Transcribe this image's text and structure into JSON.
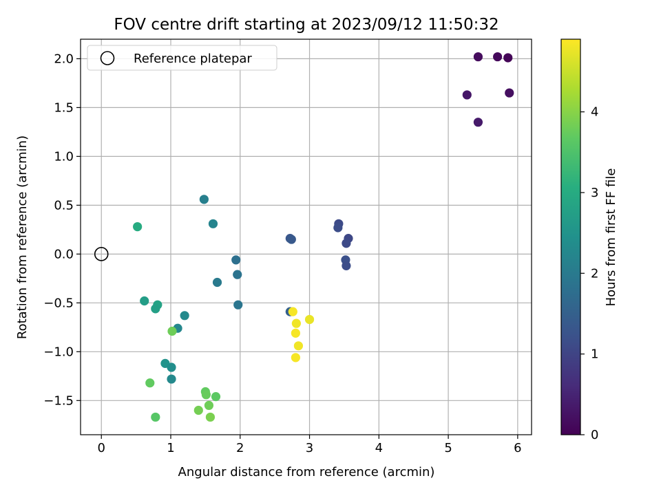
{
  "chart_data": {
    "type": "scatter",
    "title": "FOV centre drift starting at 2023/09/12 11:50:32",
    "xlabel": "Angular distance from reference (arcmin)",
    "ylabel": "Rotation from reference (arcmin)",
    "xlim": [
      -0.3,
      6.2
    ],
    "ylim": [
      -1.85,
      2.2
    ],
    "xticks": [
      0,
      1,
      2,
      3,
      4,
      5,
      6
    ],
    "yticks": [
      -1.5,
      -1.0,
      -0.5,
      0.0,
      0.5,
      1.0,
      1.5,
      2.0
    ],
    "xtick_labels": [
      "0",
      "1",
      "2",
      "3",
      "4",
      "5",
      "6"
    ],
    "ytick_labels": [
      "−1.5",
      "−1.0",
      "−0.5",
      "0.0",
      "0.5",
      "1.0",
      "1.5",
      "2.0"
    ],
    "grid": true,
    "colormap": "viridis",
    "colorbar": {
      "label": "Hours from first FF file",
      "range": [
        0,
        4.9
      ],
      "ticks": [
        0,
        1,
        2,
        3,
        4
      ],
      "tick_labels": [
        "0",
        "1",
        "2",
        "3",
        "4"
      ]
    },
    "legend": {
      "placement": "top-left",
      "entries": [
        {
          "label": "Reference platepar",
          "marker": "open-circle"
        }
      ]
    },
    "reference_point": {
      "x": 0,
      "y": 0
    },
    "points": [
      {
        "x": 5.43,
        "y": 2.02,
        "c": 0.15
      },
      {
        "x": 5.71,
        "y": 2.02,
        "c": 0.1
      },
      {
        "x": 5.86,
        "y": 2.01,
        "c": 0.05
      },
      {
        "x": 5.27,
        "y": 1.63,
        "c": 0.3
      },
      {
        "x": 5.88,
        "y": 1.65,
        "c": 0.2
      },
      {
        "x": 5.43,
        "y": 1.35,
        "c": 0.35
      },
      {
        "x": 3.42,
        "y": 0.31,
        "c": 1.1
      },
      {
        "x": 3.41,
        "y": 0.27,
        "c": 1.15
      },
      {
        "x": 3.56,
        "y": 0.16,
        "c": 1.05
      },
      {
        "x": 3.53,
        "y": 0.11,
        "c": 1.1
      },
      {
        "x": 3.52,
        "y": -0.06,
        "c": 1.2
      },
      {
        "x": 3.53,
        "y": -0.12,
        "c": 1.15
      },
      {
        "x": 2.72,
        "y": 0.16,
        "c": 1.3
      },
      {
        "x": 2.74,
        "y": 0.15,
        "c": 1.35
      },
      {
        "x": 2.72,
        "y": -0.59,
        "c": 1.5
      },
      {
        "x": 1.48,
        "y": 0.56,
        "c": 2.1
      },
      {
        "x": 1.61,
        "y": 0.31,
        "c": 2.2
      },
      {
        "x": 1.94,
        "y": -0.06,
        "c": 1.8
      },
      {
        "x": 1.96,
        "y": -0.21,
        "c": 1.85
      },
      {
        "x": 1.67,
        "y": -0.29,
        "c": 2.0
      },
      {
        "x": 1.97,
        "y": -0.52,
        "c": 1.9
      },
      {
        "x": 1.2,
        "y": -0.63,
        "c": 2.3
      },
      {
        "x": 1.1,
        "y": -0.76,
        "c": 2.25
      },
      {
        "x": 0.52,
        "y": 0.28,
        "c": 3.0
      },
      {
        "x": 0.62,
        "y": -0.48,
        "c": 2.7
      },
      {
        "x": 0.81,
        "y": -0.52,
        "c": 2.8
      },
      {
        "x": 0.78,
        "y": -0.56,
        "c": 2.75
      },
      {
        "x": 0.92,
        "y": -1.12,
        "c": 2.5
      },
      {
        "x": 1.01,
        "y": -1.16,
        "c": 2.4
      },
      {
        "x": 1.01,
        "y": -1.28,
        "c": 2.3
      },
      {
        "x": 1.02,
        "y": -0.79,
        "c": 3.8
      },
      {
        "x": 0.7,
        "y": -1.32,
        "c": 3.7
      },
      {
        "x": 0.78,
        "y": -1.67,
        "c": 3.6
      },
      {
        "x": 1.5,
        "y": -1.41,
        "c": 3.7
      },
      {
        "x": 1.51,
        "y": -1.44,
        "c": 3.75
      },
      {
        "x": 1.65,
        "y": -1.46,
        "c": 3.65
      },
      {
        "x": 1.55,
        "y": -1.55,
        "c": 3.8
      },
      {
        "x": 1.4,
        "y": -1.6,
        "c": 3.85
      },
      {
        "x": 1.57,
        "y": -1.67,
        "c": 3.9
      },
      {
        "x": 2.76,
        "y": -0.59,
        "c": 4.85
      },
      {
        "x": 2.81,
        "y": -0.71,
        "c": 4.8
      },
      {
        "x": 3.0,
        "y": -0.67,
        "c": 4.75
      },
      {
        "x": 2.8,
        "y": -0.81,
        "c": 4.85
      },
      {
        "x": 2.84,
        "y": -0.94,
        "c": 4.8
      },
      {
        "x": 2.8,
        "y": -1.06,
        "c": 4.85
      }
    ]
  }
}
